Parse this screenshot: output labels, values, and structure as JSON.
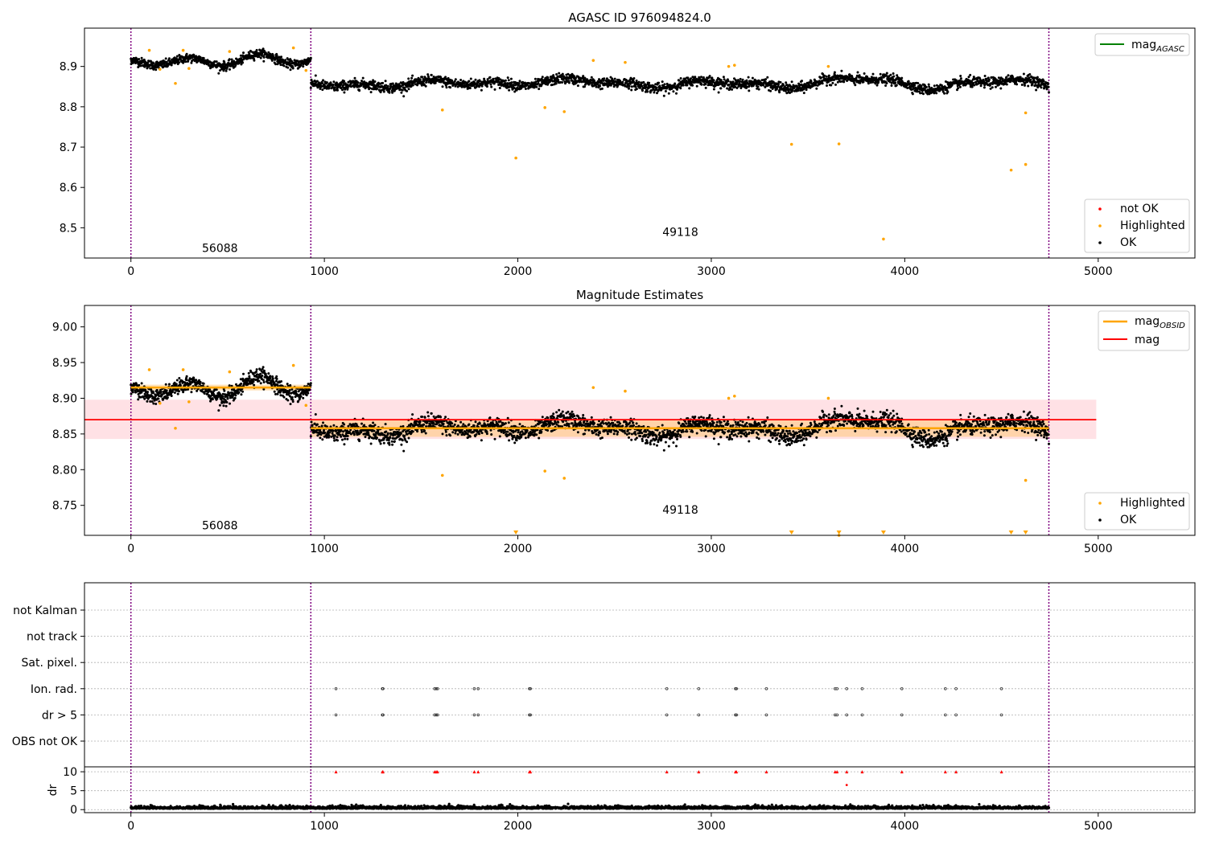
{
  "figure": {
    "colors": {
      "ok": "#000000",
      "highlighted": "#ffa500",
      "not_ok": "#ff0000",
      "mag_agasc": "#008000",
      "mag_obsid": "#ffa500",
      "mag": "#ff0000",
      "obs_boundary": "#800080",
      "band_fill": "#ff9aa8",
      "obsid_band_fill": "#ffc87a",
      "grid": "#b0b0b0"
    },
    "xlim": [
      -240,
      5500
    ],
    "xticks": [
      0,
      1000,
      2000,
      3000,
      4000,
      5000
    ],
    "obs_boundaries": [
      0,
      930,
      4745
    ]
  },
  "chart_data": [
    {
      "type": "scatter",
      "title": "AGASC ID 976094824.0",
      "xlim": [
        -240,
        5500
      ],
      "ylim": [
        8.425,
        8.995
      ],
      "yticks": [
        "8.5",
        "8.6",
        "8.7",
        "8.8",
        "8.9"
      ],
      "legend_top": {
        "placement": "top-right",
        "entries": [
          {
            "label": "mag",
            "sub": "AGASC",
            "kind": "line",
            "color": "#008000"
          }
        ]
      },
      "legend_bottom": {
        "placement": "bottom-right",
        "entries": [
          {
            "label": "not OK",
            "kind": "dot",
            "color": "#ff0000"
          },
          {
            "label": "Highlighted",
            "kind": "dot",
            "color": "#ffa500"
          },
          {
            "label": "OK",
            "kind": "dot",
            "color": "#000000"
          }
        ]
      },
      "obsid_labels": [
        {
          "text": "56088",
          "x": 460,
          "y": 8.45
        },
        {
          "text": "49118",
          "x": 2840,
          "y": 8.49
        }
      ],
      "segments": [
        {
          "obsid": "56088",
          "x": [
            0,
            930
          ],
          "mean": 8.915,
          "spread": 0.012
        },
        {
          "obsid": "49118",
          "x": [
            930,
            4745
          ],
          "mean": 8.858,
          "spread": 0.014
        }
      ],
      "highlighted": [
        {
          "x": 95,
          "y": 8.94
        },
        {
          "x": 150,
          "y": 8.893
        },
        {
          "x": 230,
          "y": 8.858
        },
        {
          "x": 270,
          "y": 8.94
        },
        {
          "x": 300,
          "y": 8.895
        },
        {
          "x": 510,
          "y": 8.937
        },
        {
          "x": 840,
          "y": 8.946
        },
        {
          "x": 905,
          "y": 8.89
        },
        {
          "x": 1610,
          "y": 8.792
        },
        {
          "x": 1990,
          "y": 8.673
        },
        {
          "x": 2140,
          "y": 8.798
        },
        {
          "x": 2240,
          "y": 8.788
        },
        {
          "x": 2390,
          "y": 8.915
        },
        {
          "x": 2555,
          "y": 8.91
        },
        {
          "x": 3090,
          "y": 8.9
        },
        {
          "x": 3120,
          "y": 8.903
        },
        {
          "x": 3415,
          "y": 8.707
        },
        {
          "x": 3605,
          "y": 8.9
        },
        {
          "x": 3660,
          "y": 8.708
        },
        {
          "x": 3890,
          "y": 8.472
        },
        {
          "x": 4550,
          "y": 8.643
        },
        {
          "x": 4625,
          "y": 8.657
        },
        {
          "x": 4625,
          "y": 8.785
        }
      ]
    },
    {
      "type": "scatter",
      "title": "Magnitude Estimates",
      "xlim": [
        -240,
        5500
      ],
      "ylim": [
        8.708,
        9.03
      ],
      "yticks": [
        "8.75",
        "8.80",
        "8.85",
        "8.90",
        "8.95",
        "9.00"
      ],
      "mag_line": {
        "y": 8.87,
        "x": [
          -240,
          4990
        ],
        "band": [
          8.843,
          8.898
        ]
      },
      "mag_obsid": [
        {
          "x": [
            0,
            930
          ],
          "y": 8.915,
          "band": [
            8.911,
            8.919
          ]
        },
        {
          "x": [
            930,
            4745
          ],
          "y": 8.858,
          "band": [
            8.846,
            8.869
          ]
        }
      ],
      "legend_top": {
        "placement": "top-right",
        "entries": [
          {
            "label": "mag",
            "sub": "OBSID",
            "kind": "line",
            "color": "#ffa500"
          },
          {
            "label": "mag",
            "kind": "line",
            "color": "#ff0000"
          }
        ]
      },
      "legend_bottom": {
        "placement": "bottom-right",
        "entries": [
          {
            "label": "Highlighted",
            "kind": "dot",
            "color": "#ffa500"
          },
          {
            "label": "OK",
            "kind": "dot",
            "color": "#000000"
          }
        ]
      },
      "obsid_labels": [
        {
          "text": "56088",
          "x": 460,
          "y": 8.722
        },
        {
          "text": "49118",
          "x": 2840,
          "y": 8.744
        }
      ],
      "out_of_range_markers": [
        1990,
        3415,
        3660,
        3890,
        4550,
        4625
      ]
    },
    {
      "type": "scatter",
      "title": "",
      "xlim": [
        -240,
        5500
      ],
      "flag_rows": [
        "not Kalman",
        "not track",
        "Sat. pixel.",
        "Ion. rad.",
        "dr > 5",
        "OBS not OK"
      ],
      "flag_events": [
        1060,
        1300,
        1303,
        1570,
        1578,
        1585,
        1775,
        1795,
        2060,
        2065,
        2770,
        2935,
        3125,
        3130,
        3285,
        3640,
        3650,
        3700,
        3780,
        3985,
        4210,
        4265,
        4500
      ],
      "dr": {
        "ylabel": "dr",
        "ylim": [
          -0.8,
          11.3
        ],
        "yticks": [
          "0",
          "5",
          "10"
        ],
        "mean": 0.4,
        "outlier": {
          "x": 3700,
          "y": 6.5
        }
      }
    }
  ]
}
